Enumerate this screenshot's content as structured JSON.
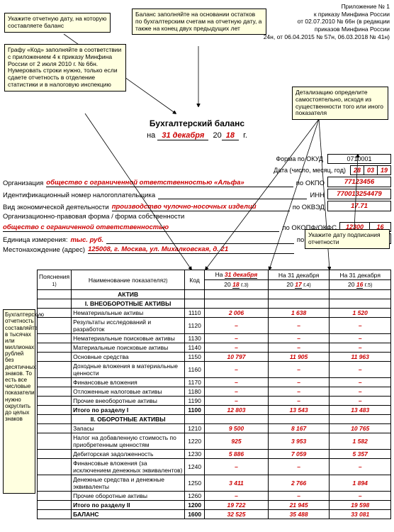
{
  "notes": {
    "n1": "Укажите отчетную дату, на которую составляете баланс",
    "n2": "Графу «Код» заполняйте в соответствии с приложением 4 к приказу Минфина России от 2 июля 2010 г. № 66н. Нумеровать строки нужно, только если сдаете отчетность в отделение статистики и в налоговую инспекцию",
    "n3": "Баланс заполняйте на основании остатков по бухгалтерским счетам на отчетную дату, а также на конец двух предыдущих лет",
    "n4": "Детализацию определите самостоятельно, исходя из существенности того или иного показателя",
    "n5": "Укажите дату подписания отчетности",
    "side": "Бухгалтерскую отчетность составляйте в тысячах или миллионах рублей без десятичных знаков. То есть все числовые показатели нужно округлить до целых знаков"
  },
  "header": {
    "l1": "Приложение № 1",
    "l2": "к приказу Минфина России",
    "l3": "от 02.07.2010 № 66н (в редакции",
    "l4": "приказов Минфина России",
    "l5": "24н, от 06.04.2015 № 57н, 06.03.2018 № 41н)"
  },
  "title": "Бухгалтерский баланс",
  "date_line": {
    "prefix": "на",
    "date": "31 декабря",
    "year_prefix": "20",
    "year": "18",
    "suffix": "г."
  },
  "form_okud_label": "Форма по ОКУД",
  "form_okud": "0710001",
  "date_label": "Дата (число, месяц, год)",
  "date_cells": {
    "d": "28",
    "m": "03",
    "y": "19"
  },
  "org_label": "Организация",
  "org_value": "общество с ограниченной ответственностью «Альфа»",
  "okpo_label": "по ОКПО",
  "okpo": "77123456",
  "inn_label": "Идентификационный номер налогоплательщика",
  "inn_side": "ИНН",
  "inn": "770013254479",
  "activity_label": "Вид экономической деятельности",
  "activity_value": "производство чулочно-носочных изделий",
  "okved_label": "по ОКВЭД",
  "okved": "17.71",
  "form_label": "Организационно-правовая форма / форма собственности",
  "form_value": "общество с ограниченной ответственностью",
  "okopf_label": "по ОКОПФ/ОКФС",
  "okopf1": "12300",
  "okopf2": "16",
  "unit_label": "Единица измерения:",
  "unit_value": "тыс. руб.",
  "okei_label": "по ОКЕИ",
  "okei": "384",
  "address_label": "Местонахождение (адрес)",
  "address_value": "125008, г. Москва, ул. Михалковская, д. 21",
  "table": {
    "head": {
      "c0": "Пояснения",
      "c0_sup": "1)",
      "c1": "Наименование показателя",
      "c1_sup": "2)",
      "c2": "Код",
      "c3_prefix": "На",
      "c3_date": "31 декабря",
      "c3_y": "18",
      "c3_sup": "3)",
      "c4": "На 31 декабря",
      "c4_y": "17",
      "c4_sup": "4)",
      "c5": "На 31 декабря",
      "c5_y": "16",
      "c5_sup": "5)"
    },
    "s_asset": "АКТИВ",
    "s1": "I. ВНЕОБОРОТНЫЕ АКТИВЫ",
    "rows": [
      {
        "name": "Нематериальные активы",
        "code": "1110",
        "v1": "2 006",
        "v2": "1 638",
        "v3": "1 520"
      },
      {
        "name": "Результаты исследований и разработок",
        "code": "1120",
        "v1": "–",
        "v2": "–",
        "v3": "–"
      },
      {
        "name": "Нематериальные поисковые активы",
        "code": "1130",
        "v1": "–",
        "v2": "–",
        "v3": "–"
      },
      {
        "name": "Материальные поисковые активы",
        "code": "1140",
        "v1": "–",
        "v2": "–",
        "v3": "–"
      },
      {
        "name": "Основные средства",
        "code": "1150",
        "v1": "10 797",
        "v2": "11 905",
        "v3": "11 963"
      },
      {
        "name": "Доходные вложения в материальные ценности",
        "code": "1160",
        "v1": "–",
        "v2": "–",
        "v3": "–"
      },
      {
        "name": "Финансовые вложения",
        "code": "1170",
        "v1": "–",
        "v2": "–",
        "v3": "–"
      },
      {
        "name": "Отложенные налоговые активы",
        "code": "1180",
        "v1": "–",
        "v2": "–",
        "v3": "–"
      },
      {
        "name": "Прочие внеоборотные активы",
        "code": "1190",
        "v1": "–",
        "v2": "–",
        "v3": "–"
      }
    ],
    "total1": {
      "name": "Итого по разделу I",
      "code": "1100",
      "v1": "12 803",
      "v2": "13 543",
      "v3": "13 483"
    },
    "s2": "II. ОБОРОТНЫЕ АКТИВЫ",
    "rows2": [
      {
        "name": "Запасы",
        "code": "1210",
        "v1": "9 500",
        "v2": "8 167",
        "v3": "10 765"
      },
      {
        "name": "Налог на добавленную стоимость по приобретенным ценностям",
        "code": "1220",
        "v1": "925",
        "v2": "3 953",
        "v3": "1 582"
      },
      {
        "name": "Дебиторская задолженность",
        "code": "1230",
        "v1": "5 886",
        "v2": "7 059",
        "v3": "5 357"
      },
      {
        "name": "Финансовые вложения (за исключением денежных эквивалентов)",
        "code": "1240",
        "v1": "–",
        "v2": "–",
        "v3": "–"
      },
      {
        "name": "Денежные средства и денежные эквиваленты",
        "code": "1250",
        "v1": "3 411",
        "v2": "2 766",
        "v3": "1 894"
      },
      {
        "name": "Прочие оборотные активы",
        "code": "1260",
        "v1": "–",
        "v2": "–",
        "v3": "–"
      }
    ],
    "total2": {
      "name": "Итого по разделу II",
      "code": "1200",
      "v1": "19 722",
      "v2": "21 945",
      "v3": "19 598"
    },
    "balance": {
      "name": "БАЛАНС",
      "code": "1600",
      "v1": "32 525",
      "v2": "35 488",
      "v3": "33 081"
    }
  }
}
